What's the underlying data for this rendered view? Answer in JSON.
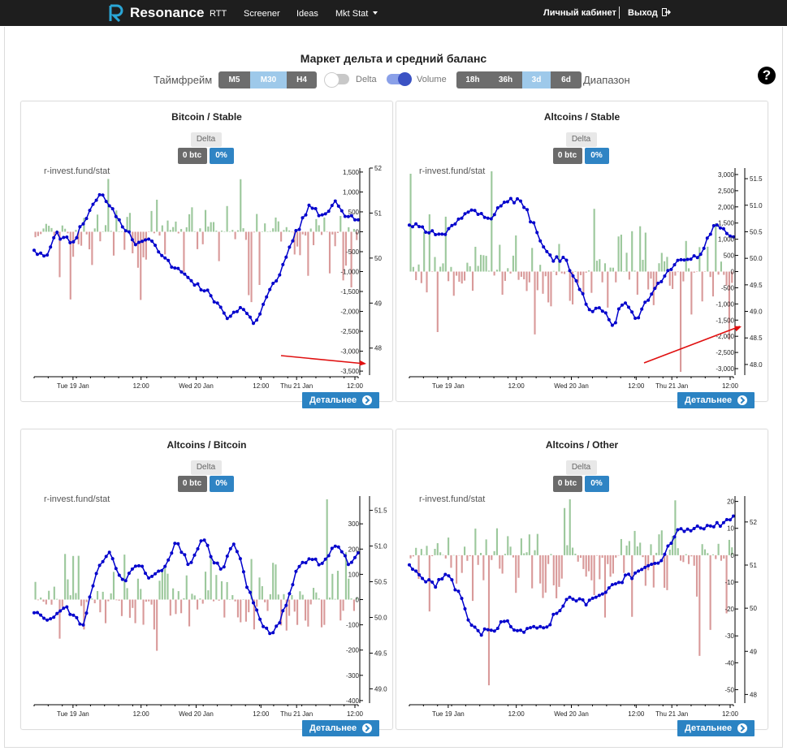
{
  "nav": {
    "brand": "Resonance",
    "items": [
      {
        "label": "RTT"
      },
      {
        "label": "Screener"
      },
      {
        "label": "Ideas"
      },
      {
        "label": "Mkt Stat"
      }
    ],
    "account": "Личный кабинет",
    "logout": "Выход"
  },
  "page": {
    "title": "Маркет дельта и средний баланс",
    "timeframe_label": "Таймфрейм",
    "timeframes": [
      {
        "label": "M5",
        "active": false
      },
      {
        "label": "M30",
        "active": true
      },
      {
        "label": "H4",
        "active": false
      }
    ],
    "delta_label": "Delta",
    "delta_on": false,
    "volume_label": "Volume",
    "volume_on": true,
    "ranges": [
      {
        "label": "18h",
        "active": false
      },
      {
        "label": "36h",
        "active": false
      },
      {
        "label": "3d",
        "active": true
      },
      {
        "label": "6d",
        "active": false
      }
    ],
    "range_label": "Диапазон",
    "help": "?"
  },
  "colors": {
    "line": "#0000cc",
    "pos_bar": "#9cc89c",
    "neg_bar": "#d99a9a",
    "arrow": "#e01010",
    "accent": "#2b83c3"
  },
  "panels": [
    {
      "title": "Bitcoin / Stable",
      "chip": "Delta",
      "btc": "0 btc",
      "pct": "0%",
      "watermark": "r-invest.fund/stat",
      "details": "Детальнее",
      "chart_data": {
        "type": "bar+line",
        "x_ticks": [
          "Tue 19 Jan",
          "12:00",
          "Wed 20 Jan",
          "12:00",
          "Thu 21 Jan",
          "12:00"
        ],
        "left_axis": {
          "ticks": [
            "1,500",
            "1,000",
            "500",
            "0",
            "-500",
            "-1,000",
            "-1,500",
            "-2,000",
            "-2,500",
            "-3,000",
            "-3,500"
          ],
          "range": [
            -3600,
            1600
          ]
        },
        "right_axis": {
          "ticks": [
            "52",
            "51",
            "50",
            "49",
            "48"
          ],
          "range": [
            47.4,
            52
          ]
        },
        "annotation": "red arrow pointing at right axis near bottom"
      }
    },
    {
      "title": "Altcoins / Stable",
      "chip": "Delta",
      "btc": "0 btc",
      "pct": "0%",
      "watermark": "r-invest.fund/stat",
      "details": "Детальнее",
      "chart_data": {
        "type": "bar+line",
        "x_ticks": [
          "Tue 19 Jan",
          "12:00",
          "Wed 20 Jan",
          "12:00",
          "Thu 21 Jan",
          "12:00"
        ],
        "left_axis": {
          "ticks": [
            "3,000",
            "2,500",
            "2,000",
            "1,500",
            "1,000",
            "500",
            "0",
            "-500",
            "-1,000",
            "-1,500",
            "-2,000",
            "-2,500",
            "-3,000"
          ],
          "range": [
            -3200,
            3200
          ]
        },
        "right_axis": {
          "ticks": [
            "51.5",
            "51.0",
            "50.5",
            "50.0",
            "49.5",
            "49.0",
            "48.5",
            "48.0"
          ],
          "range": [
            47.8,
            51.7
          ]
        },
        "annotation": "red arrow pointing at right axis"
      }
    },
    {
      "title": "Altcoins / Bitcoin",
      "chip": "Delta",
      "btc": "0 btc",
      "pct": "0%",
      "watermark": "r-invest.fund/stat",
      "details": "Детальнее",
      "chart_data": {
        "type": "bar+line",
        "x_ticks": [
          "Tue 19 Jan",
          "12:00",
          "Wed 20 Jan",
          "12:00",
          "Thu 21 Jan",
          "12:00"
        ],
        "left_axis": {
          "ticks": [
            "300",
            "200",
            "100",
            "0",
            "-100",
            "-200",
            "-300",
            "-400"
          ],
          "range": [
            -410,
            410
          ]
        },
        "right_axis": {
          "ticks": [
            "51.5",
            "51.0",
            "50.5",
            "50.0",
            "49.5",
            "49.0"
          ],
          "range": [
            48.8,
            51.7
          ]
        }
      }
    },
    {
      "title": "Altcoins / Other",
      "chip": "Delta",
      "btc": "0 btc",
      "pct": "0%",
      "watermark": "r-invest.fund/stat",
      "details": "Детальнее",
      "chart_data": {
        "type": "bar+line",
        "x_ticks": [
          "Tue 19 Jan",
          "12:00",
          "Wed 20 Jan",
          "12:00",
          "Thu 21 Jan",
          "12:00"
        ],
        "left_axis": {
          "ticks": [
            "20",
            "10",
            "0",
            "-10",
            "-20",
            "-30",
            "-40",
            "-50"
          ],
          "range": [
            -55,
            22
          ]
        },
        "right_axis": {
          "ticks": [
            "52",
            "51",
            "50",
            "49",
            "48"
          ],
          "range": [
            47.8,
            52.6
          ]
        }
      }
    }
  ]
}
